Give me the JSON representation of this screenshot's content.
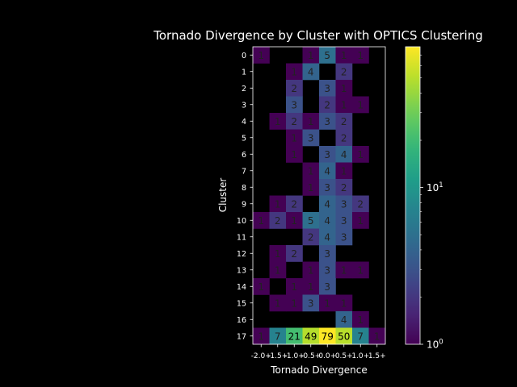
{
  "chart_data": {
    "type": "heatmap",
    "title": "Tornado Divergence by Cluster with OPTICS Clustering",
    "xlabel": "Tornado Divergence",
    "ylabel": "Cluster",
    "x_categories": [
      "-2.0+",
      "-1.5+",
      "-1.0+",
      "-0.5+",
      "0.0+",
      "0.5+",
      "1.0+",
      "1.5+"
    ],
    "y_categories": [
      "0",
      "1",
      "2",
      "3",
      "4",
      "5",
      "6",
      "7",
      "8",
      "9",
      "10",
      "11",
      "12",
      "13",
      "14",
      "15",
      "16",
      "17"
    ],
    "values": [
      [
        1,
        null,
        null,
        1,
        5,
        1,
        1,
        null
      ],
      [
        null,
        null,
        1,
        4,
        null,
        2,
        null,
        null
      ],
      [
        null,
        null,
        2,
        null,
        3,
        1,
        null,
        null
      ],
      [
        null,
        null,
        3,
        null,
        2,
        1,
        1,
        null
      ],
      [
        null,
        1,
        2,
        1,
        3,
        2,
        null,
        null
      ],
      [
        null,
        null,
        1,
        3,
        null,
        2,
        null,
        null
      ],
      [
        null,
        null,
        1,
        null,
        3,
        4,
        1,
        null
      ],
      [
        null,
        null,
        null,
        1,
        4,
        1,
        null,
        null
      ],
      [
        null,
        null,
        null,
        1,
        3,
        2,
        null,
        null
      ],
      [
        null,
        1,
        2,
        null,
        4,
        3,
        2,
        null
      ],
      [
        1,
        2,
        1,
        5,
        4,
        3,
        1,
        null
      ],
      [
        null,
        null,
        null,
        2,
        4,
        3,
        null,
        null
      ],
      [
        null,
        1,
        2,
        null,
        3,
        null,
        null,
        null
      ],
      [
        null,
        1,
        null,
        1,
        3,
        1,
        1,
        null
      ],
      [
        1,
        null,
        1,
        1,
        3,
        null,
        null,
        null
      ],
      [
        null,
        1,
        1,
        3,
        1,
        1,
        null,
        null
      ],
      [
        null,
        null,
        null,
        null,
        null,
        4,
        1,
        null
      ],
      [
        1,
        7,
        21,
        49,
        79,
        50,
        7,
        1
      ]
    ],
    "colorbar": {
      "scale": "log",
      "colormap": "viridis",
      "range": [
        1,
        79
      ],
      "ticks": [
        {
          "value": 1,
          "base": "10",
          "exp": "0"
        },
        {
          "value": 10,
          "base": "10",
          "exp": "1"
        }
      ]
    },
    "grid": false,
    "background": "#000000",
    "text_color": "#ffffff"
  }
}
